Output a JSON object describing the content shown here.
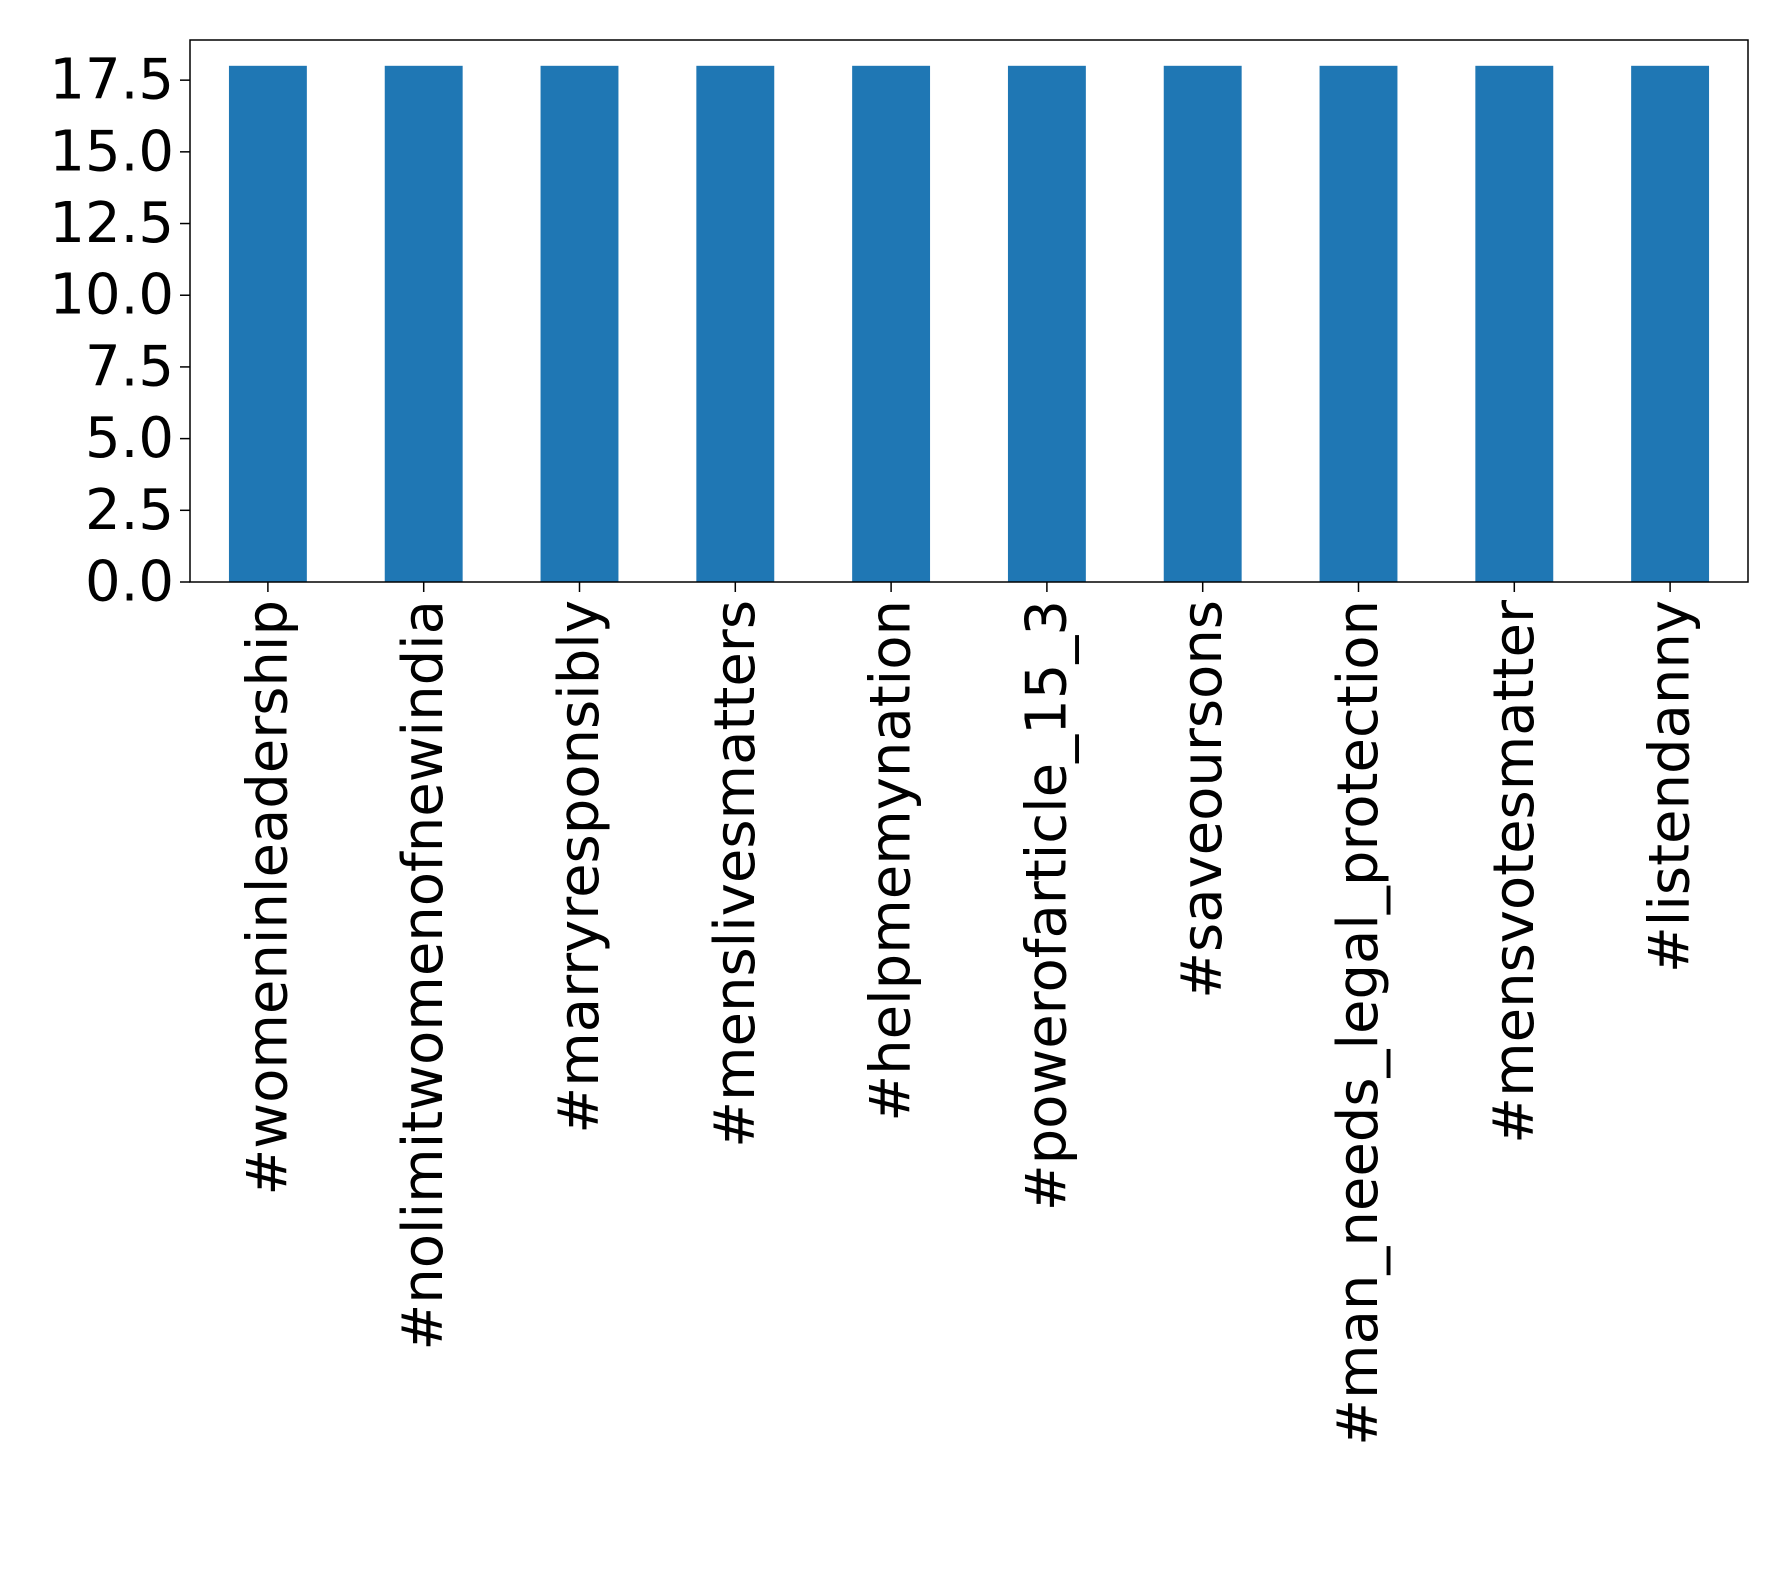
{
  "chart_data": {
    "type": "bar",
    "categories": [
      "#womeninleadership",
      "#nolimitwomenofnewindia",
      "#marryresponsibly",
      "#menslivesmatters",
      "#helpmemynation",
      "#powerofarticle_15_3",
      "#saveoursons",
      "#man_needs_legal_protection",
      "#mensvotesmatter",
      "#listendanny"
    ],
    "values": [
      18,
      18,
      18,
      18,
      18,
      18,
      18,
      18,
      18,
      18
    ],
    "title": "",
    "xlabel": "",
    "ylabel": "",
    "ylim": [
      0,
      18.9
    ],
    "yticks": [
      "0.0",
      "2.5",
      "5.0",
      "7.5",
      "10.0",
      "12.5",
      "15.0",
      "17.5"
    ],
    "ytick_values": [
      0,
      2.5,
      5,
      7.5,
      10,
      12.5,
      15,
      17.5
    ],
    "bar_color": "#1f77b4",
    "grid": false,
    "legend": "none"
  }
}
